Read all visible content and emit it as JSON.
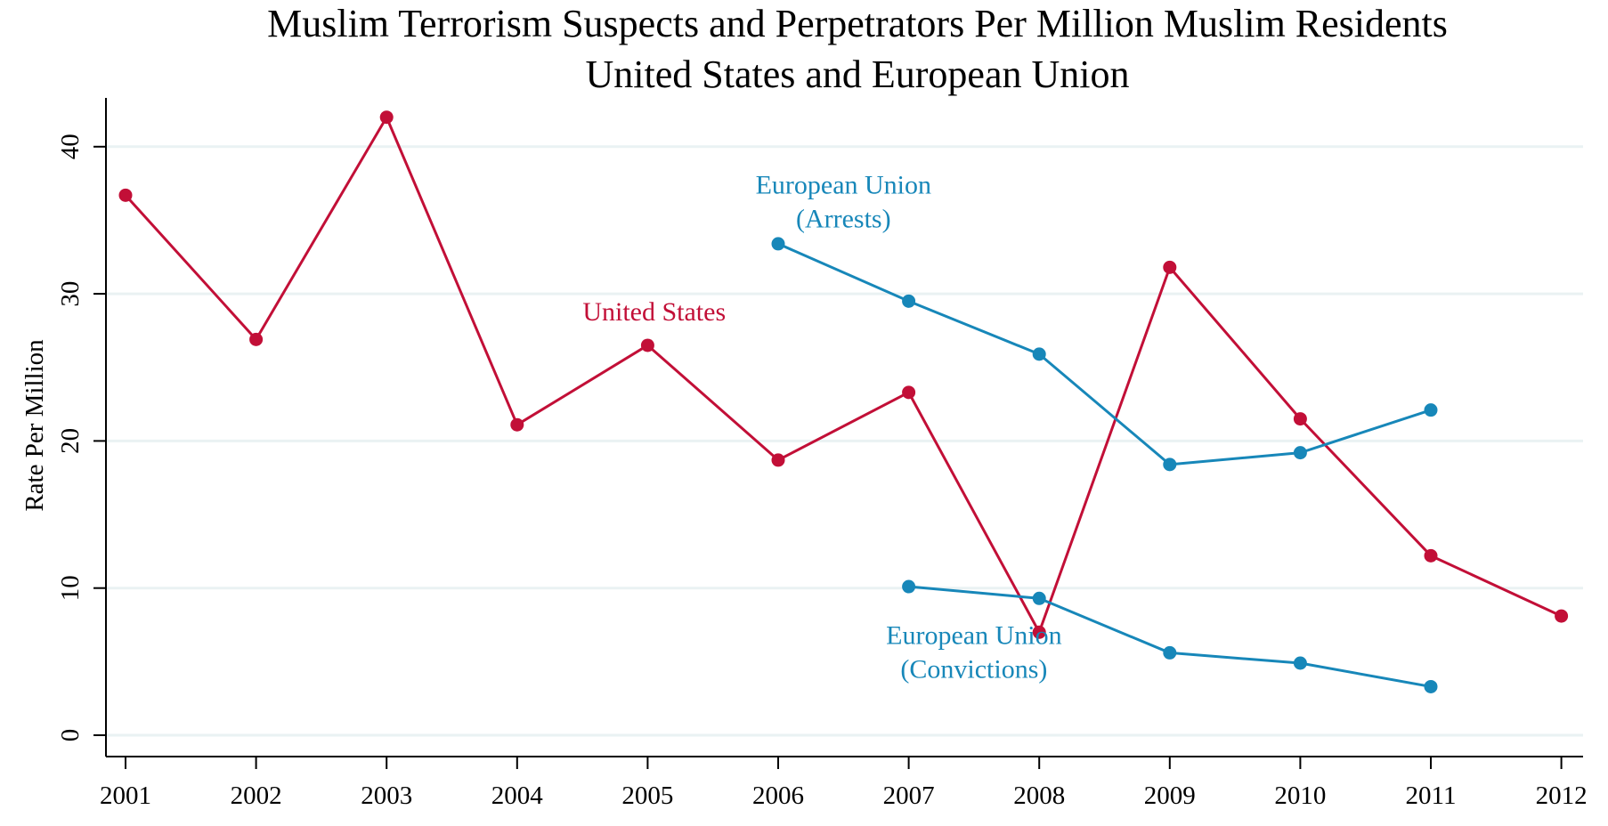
{
  "chart_data": {
    "type": "line",
    "title": [
      "Muslim Terrorism Suspects and Perpetrators Per Million Muslim Residents",
      "United States and European Union"
    ],
    "xlabel": "",
    "ylabel": "Rate Per Million",
    "x": [
      2001,
      2002,
      2003,
      2004,
      2005,
      2006,
      2007,
      2008,
      2009,
      2010,
      2011,
      2012
    ],
    "x_tick_labels": [
      "2001",
      "2002",
      "2003",
      "2004",
      "2005",
      "2006",
      "2007",
      "2008",
      "2009",
      "2010",
      "2011",
      "2012"
    ],
    "yticks": [
      0,
      10,
      20,
      30,
      40
    ],
    "y_tick_labels": [
      "0",
      "10",
      "20",
      "30",
      "40"
    ],
    "ylim": [
      -1.5,
      42.5
    ],
    "grid": true,
    "legend": "none (inline labels)",
    "series": [
      {
        "name": "United States",
        "label_lines": [
          "United States"
        ],
        "color": "#c20f37",
        "x": [
          2001,
          2002,
          2003,
          2004,
          2005,
          2006,
          2007,
          2008,
          2009,
          2010,
          2011,
          2012
        ],
        "values": [
          36.7,
          26.9,
          42.0,
          21.1,
          26.5,
          18.7,
          23.3,
          7.0,
          31.8,
          21.5,
          12.2,
          8.1
        ],
        "label_anchor": [
          2005.05,
          28.2
        ]
      },
      {
        "name": "European Union (Arrests)",
        "label_lines": [
          "European Union",
          "(Arrests)"
        ],
        "color": "#1787b9",
        "x": [
          2006,
          2007,
          2008,
          2009,
          2010,
          2011
        ],
        "values": [
          33.4,
          29.5,
          25.9,
          18.4,
          19.2,
          22.1
        ],
        "label_anchor": [
          2006.5,
          36.8
        ]
      },
      {
        "name": "European Union (Convictions)",
        "label_lines": [
          "European Union",
          "(Convictions)"
        ],
        "color": "#1787b9",
        "x": [
          2007,
          2008,
          2009,
          2010,
          2011
        ],
        "values": [
          10.1,
          9.3,
          5.6,
          4.9,
          3.3
        ],
        "label_anchor": [
          2007.5,
          6.2
        ]
      }
    ]
  }
}
